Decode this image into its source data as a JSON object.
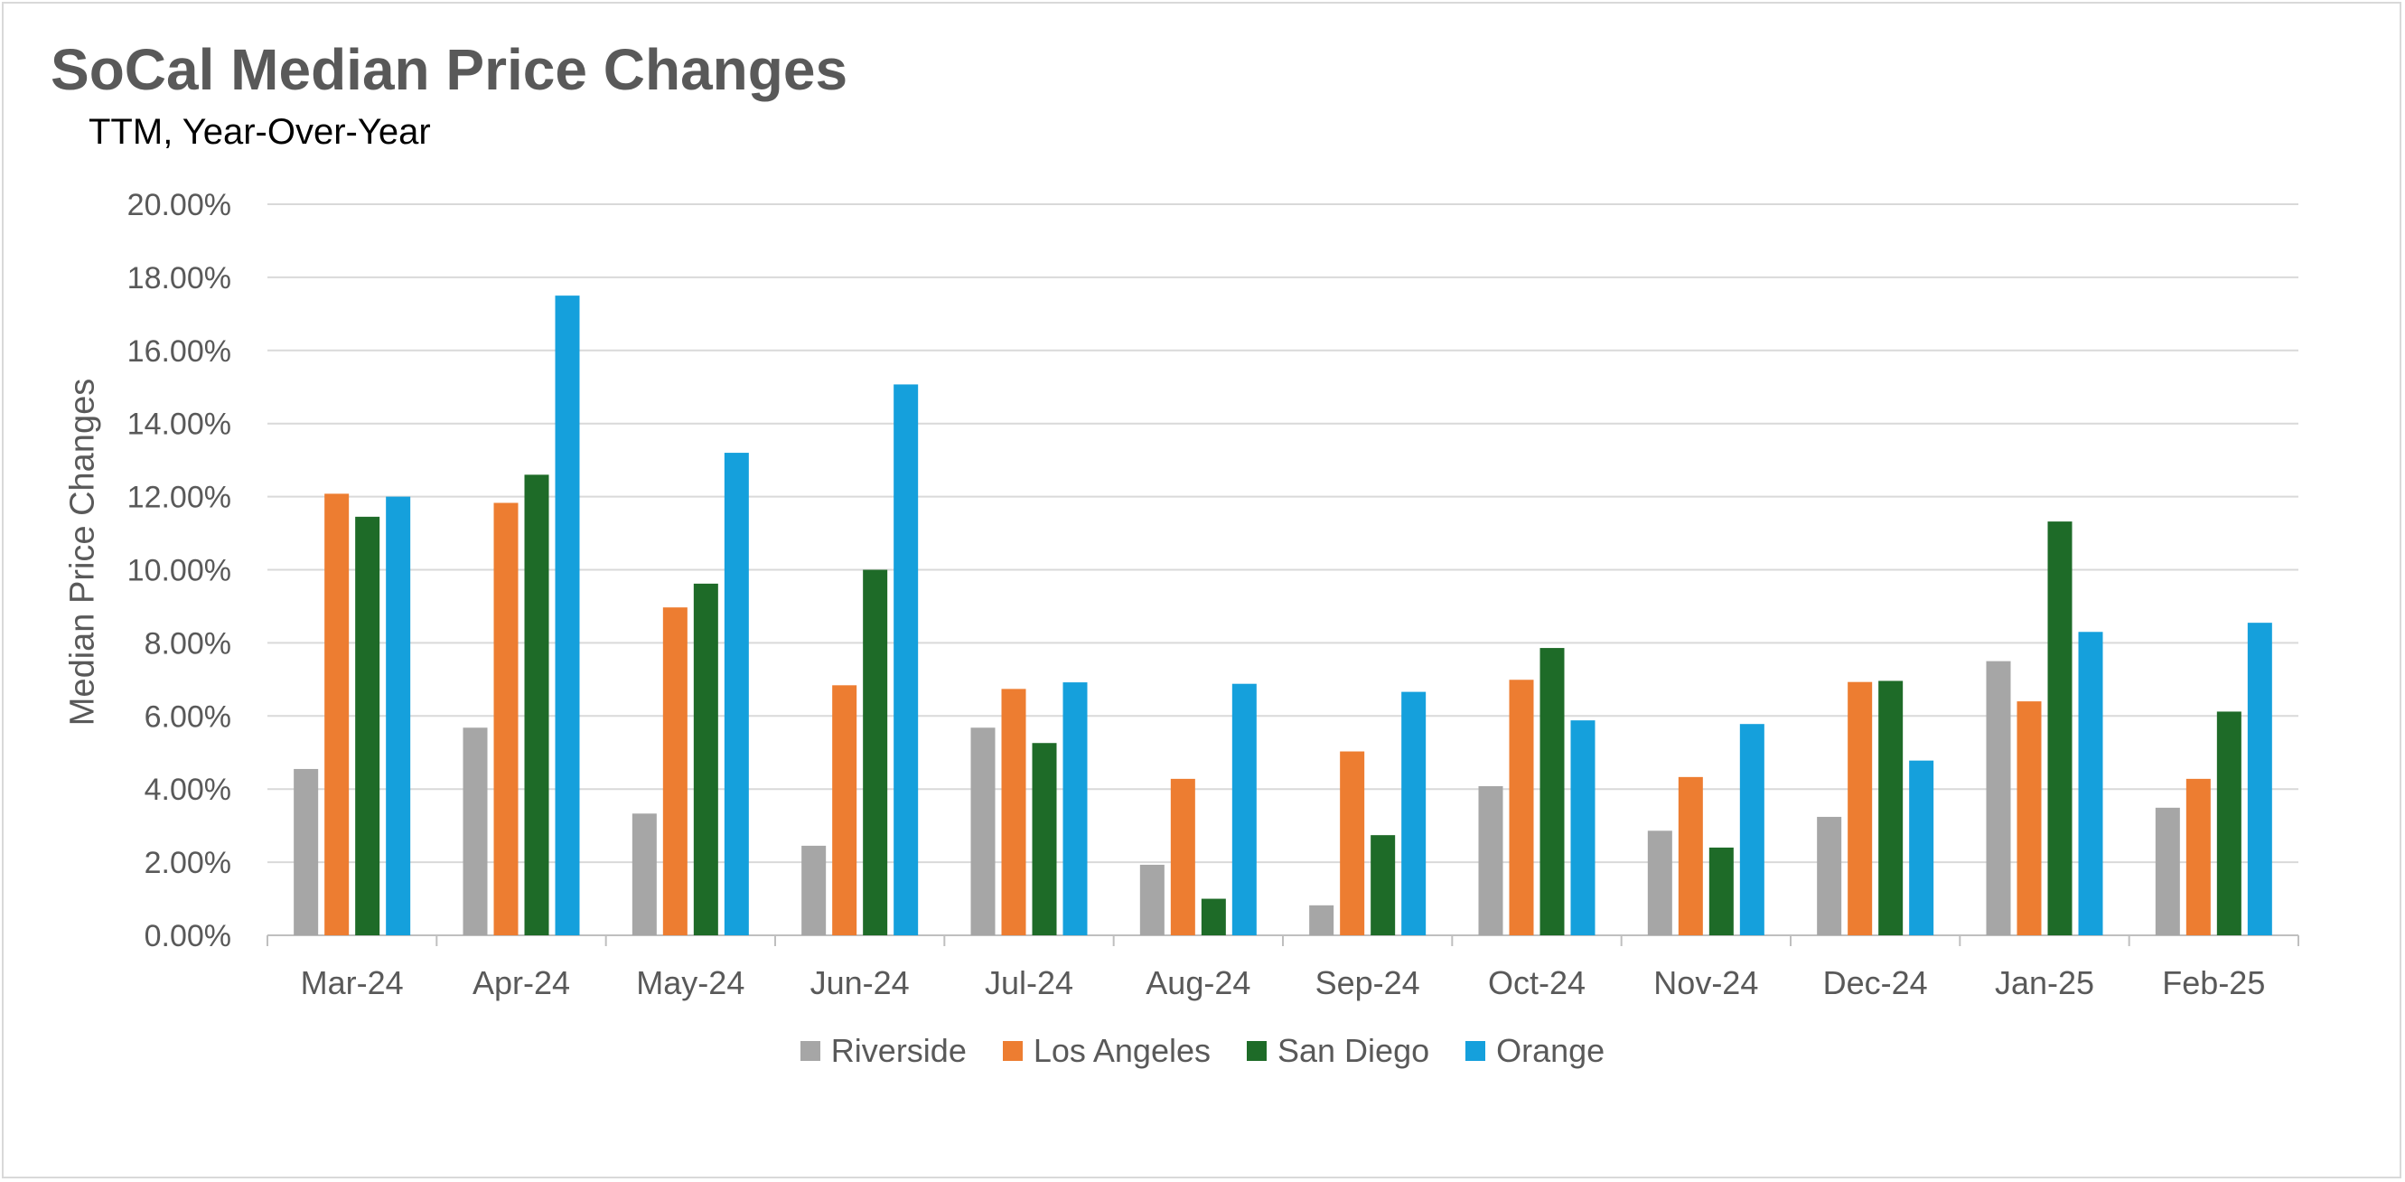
{
  "chart_data": {
    "type": "bar",
    "title": "SoCal Median Price Changes",
    "subtitle": "TTM, Year-Over-Year",
    "xlabel": "",
    "ylabel": "Median Price Changes",
    "ylim": [
      0,
      20
    ],
    "y_ticks": [
      "0.00%",
      "2.00%",
      "4.00%",
      "6.00%",
      "8.00%",
      "10.00%",
      "12.00%",
      "14.00%",
      "16.00%",
      "18.00%",
      "20.00%"
    ],
    "categories": [
      "Mar-24",
      "Apr-24",
      "May-24",
      "Jun-24",
      "Jul-24",
      "Aug-24",
      "Sep-24",
      "Oct-24",
      "Nov-24",
      "Dec-24",
      "Jan-25",
      "Feb-25"
    ],
    "series": [
      {
        "name": "Riverside",
        "color": "#a6a6a6",
        "values": [
          4.55,
          5.68,
          3.33,
          2.45,
          5.68,
          1.93,
          0.82,
          4.08,
          2.86,
          3.24,
          7.5,
          3.49
        ]
      },
      {
        "name": "Los Angeles",
        "color": "#ed7d31",
        "values": [
          12.08,
          11.83,
          8.97,
          6.84,
          6.74,
          4.28,
          5.03,
          6.99,
          4.33,
          6.93,
          6.4,
          4.28
        ]
      },
      {
        "name": "San Diego",
        "color": "#1e6b28",
        "values": [
          11.45,
          12.6,
          9.62,
          10.0,
          5.26,
          1.0,
          2.74,
          7.86,
          2.4,
          6.96,
          11.32,
          6.12
        ]
      },
      {
        "name": "Orange",
        "color": "#15a0dc",
        "values": [
          12.0,
          17.5,
          13.2,
          15.07,
          6.92,
          6.88,
          6.66,
          5.88,
          5.78,
          4.78,
          8.3,
          8.55
        ]
      }
    ],
    "grid": true,
    "legend_position": "bottom"
  }
}
